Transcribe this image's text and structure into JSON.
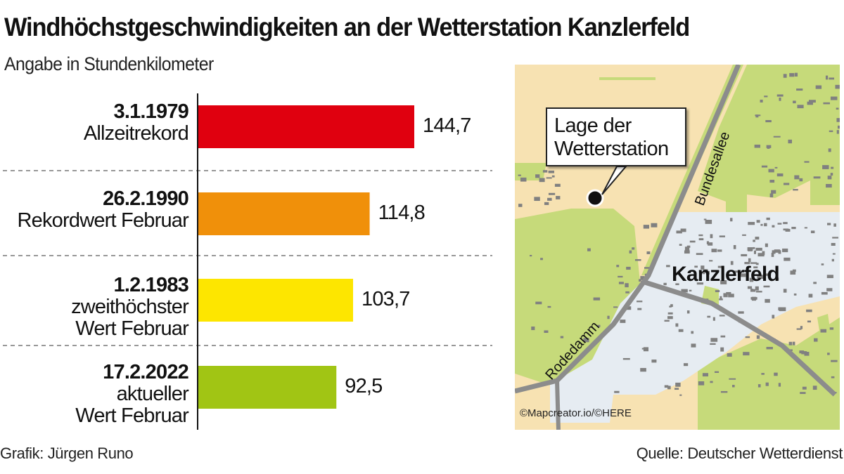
{
  "title": "Windhöchstgeschwindigkeiten an der Wetterstation Kanzlerfeld",
  "subtitle": "Angabe in Stundenkilometer",
  "chart_data": {
    "type": "bar",
    "orientation": "horizontal",
    "categories": [
      {
        "date": "3.1.1979",
        "desc": [
          "Allzeitrekord"
        ]
      },
      {
        "date": "26.2.1990",
        "desc": [
          "Rekordwert Februar"
        ]
      },
      {
        "date": "1.2.1983",
        "desc": [
          "zweithöchster",
          "Wert Februar"
        ]
      },
      {
        "date": "17.2.2022",
        "desc": [
          "aktueller",
          "Wert Februar"
        ]
      }
    ],
    "values": [
      144.7,
      114.8,
      103.7,
      92.5
    ],
    "value_labels": [
      "144,7",
      "114,8",
      "103,7",
      "92,5"
    ],
    "colors": [
      "#e0000f",
      "#f0900a",
      "#fde600",
      "#a1c514"
    ],
    "xlim": [
      0,
      150
    ],
    "grid": false
  },
  "map": {
    "callout": [
      "Lage der",
      "Wetterstation"
    ],
    "district": "Kanzlerfeld",
    "streets": [
      "Bundesallee",
      "Rodedamm"
    ],
    "copyright": "©Mapcreator.io/©HERE",
    "colors": {
      "land": "#f7e2b2",
      "green": "#c6da7a",
      "urban": "#e6ecf2",
      "road": "#8c8c8c",
      "building": "#808080"
    }
  },
  "footer": {
    "credit": "Grafik: Jürgen Runo",
    "source": "Quelle: Deutscher Wetterdienst"
  }
}
